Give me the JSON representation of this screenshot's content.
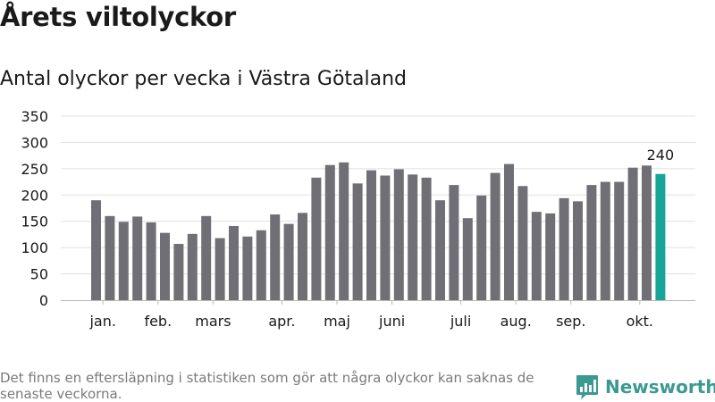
{
  "title": "Årets viltolyckor",
  "subtitle": "Antal olyckor per vecka i Västra Götaland",
  "footnote": "Det finns en eftersläpning i statistiken som gör att några olyckor kan saknas de senaste veckorna.",
  "brand": {
    "name": "Newsworthy",
    "icon": "newsworthy-logo-icon"
  },
  "colors": {
    "bar": "#716f76",
    "highlight": "#17a599",
    "grid": "#e0e0e0",
    "axis": "#b8b8b8",
    "brand": "#3a9a91"
  },
  "chart_data": {
    "type": "bar",
    "ylim": [
      0,
      350
    ],
    "yticks": [
      0,
      50,
      100,
      150,
      200,
      250,
      300,
      350
    ],
    "values": [
      190,
      160,
      149,
      159,
      148,
      128,
      107,
      126,
      160,
      118,
      141,
      121,
      133,
      163,
      145,
      166,
      233,
      257,
      262,
      222,
      247,
      237,
      249,
      239,
      233,
      190,
      219,
      156,
      199,
      242,
      259,
      217,
      168,
      165,
      194,
      188,
      219,
      225,
      225,
      252,
      256,
      240
    ],
    "month_labels": [
      {
        "label": "jan.",
        "week": 1
      },
      {
        "label": "feb.",
        "week": 5
      },
      {
        "label": "mars",
        "week": 9
      },
      {
        "label": "apr.",
        "week": 14
      },
      {
        "label": "maj",
        "week": 18
      },
      {
        "label": "juni",
        "week": 22
      },
      {
        "label": "juli",
        "week": 27
      },
      {
        "label": "aug.",
        "week": 31
      },
      {
        "label": "sep.",
        "week": 35
      },
      {
        "label": "okt.",
        "week": 40
      }
    ],
    "highlight_index": 41,
    "highlight_label": "240",
    "grid": true,
    "legend": "none"
  }
}
